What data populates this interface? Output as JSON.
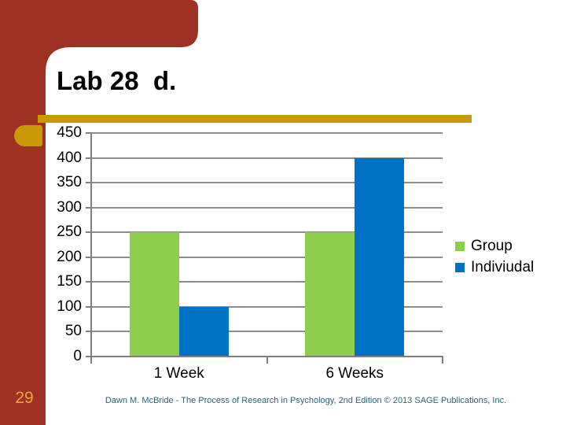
{
  "slide": {
    "title": "Lab 28  d.",
    "page_number": "29",
    "footer": "Dawn M. McBride - The Process of Research in Psychology, 2nd Edition © 2013 SAGE Publications, Inc."
  },
  "colors": {
    "corner_accent": "#9D3123",
    "gold_bar": "#C99A03",
    "page_number_text": "#EFA63C",
    "footer_text": "#2F6273",
    "gridline": "#8C8C8C",
    "axis": "#7F7F7F",
    "chart_text": "#000000",
    "series_group": "#8FCE4D",
    "series_individual": "#0072C4"
  },
  "chart_data": {
    "type": "bar",
    "title": "",
    "xlabel": "",
    "ylabel": "",
    "categories": [
      "1 Week",
      "6 Weeks"
    ],
    "series": [
      {
        "name": "Group",
        "color": "#8FCE4D",
        "values": [
          250,
          250
        ]
      },
      {
        "name": "Indiviudal",
        "color": "#0072C4",
        "values": [
          100,
          400
        ]
      }
    ],
    "ylim": [
      0,
      450
    ],
    "yticks": [
      0,
      50,
      100,
      150,
      200,
      250,
      300,
      350,
      400,
      450
    ],
    "grid": true,
    "legend_position": "right"
  }
}
